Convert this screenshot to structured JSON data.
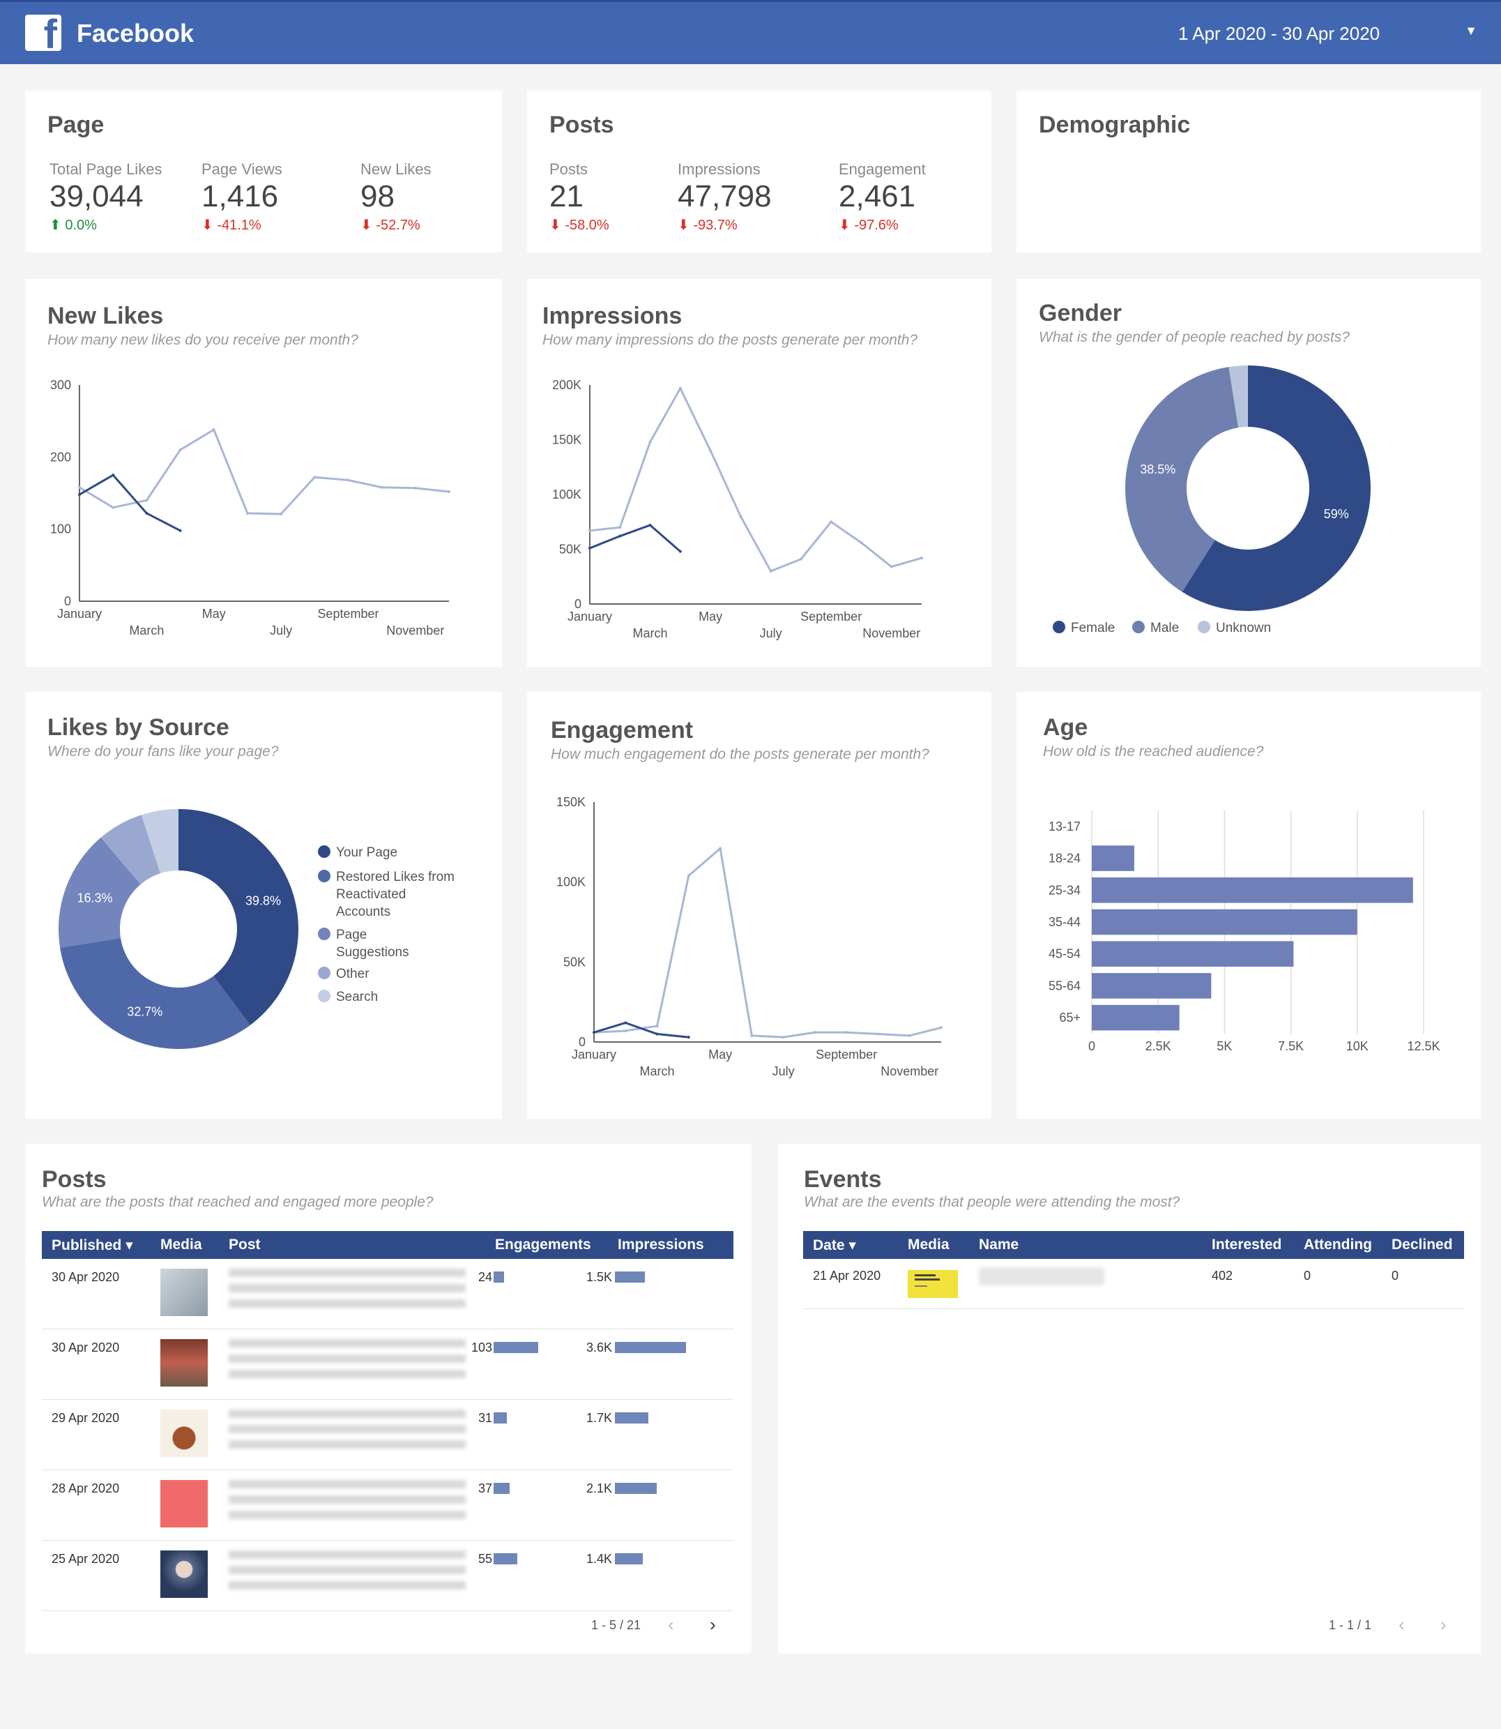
{
  "header": {
    "brand": "Facebook",
    "date_range": "1 Apr 2020 - 30 Apr 2020"
  },
  "page_card": {
    "title": "Page",
    "kpis": [
      {
        "label": "Total Page Likes",
        "value": "39,044",
        "delta": "0.0%",
        "dir": "up"
      },
      {
        "label": "Page Views",
        "value": "1,416",
        "delta": "-41.1%",
        "dir": "down"
      },
      {
        "label": "New Likes",
        "value": "98",
        "delta": "-52.7%",
        "dir": "down"
      }
    ]
  },
  "posts_card": {
    "title": "Posts",
    "kpis": [
      {
        "label": "Posts",
        "value": "21",
        "delta": "-58.0%",
        "dir": "down"
      },
      {
        "label": "Impressions",
        "value": "47,798",
        "delta": "-93.7%",
        "dir": "down"
      },
      {
        "label": "Engagement",
        "value": "2,461",
        "delta": "-97.6%",
        "dir": "down"
      }
    ]
  },
  "demographic_card": {
    "title": "Demographic"
  },
  "new_likes": {
    "title": "New Likes",
    "subtitle": "How many new likes do you receive per month?"
  },
  "impressions": {
    "title": "Impressions",
    "subtitle": "How many impressions do the posts generate per month?"
  },
  "gender": {
    "title": "Gender",
    "subtitle": "What is the gender of people reached by posts?"
  },
  "likes_source": {
    "title": "Likes by Source",
    "subtitle": "Where do your fans like your page?"
  },
  "engagement": {
    "title": "Engagement",
    "subtitle": "How much engagement do the posts generate per month?"
  },
  "age": {
    "title": "Age",
    "subtitle": "How old is the reached audience?"
  },
  "chart_data": [
    {
      "id": "new_likes",
      "type": "line",
      "x": [
        "January",
        "February",
        "March",
        "April",
        "May",
        "June",
        "July",
        "August",
        "September",
        "October",
        "November",
        "December"
      ],
      "xticks_top": [
        "January",
        "May",
        "September"
      ],
      "xticks_bottom": [
        "March",
        "July",
        "November"
      ],
      "ylim": [
        0,
        300
      ],
      "yticks": [
        "0",
        "100",
        "200",
        "300"
      ],
      "series": [
        {
          "values": [
            158,
            130,
            140,
            210,
            238,
            122,
            121,
            172,
            168,
            158,
            157,
            152
          ],
          "color": "#a8b6d6"
        },
        {
          "values": [
            148,
            175,
            122,
            98,
            null,
            null,
            null,
            null,
            null,
            null,
            null,
            null
          ],
          "color": "#2f4a87"
        }
      ]
    },
    {
      "id": "impressions",
      "type": "line",
      "x": [
        "January",
        "February",
        "March",
        "April",
        "May",
        "June",
        "July",
        "August",
        "September",
        "October",
        "November",
        "December"
      ],
      "xticks_top": [
        "January",
        "May",
        "September"
      ],
      "xticks_bottom": [
        "March",
        "July",
        "November"
      ],
      "ylim": [
        0,
        200000
      ],
      "yticks": [
        "0",
        "50K",
        "100K",
        "150K",
        "200K"
      ],
      "series": [
        {
          "values": [
            67000,
            70000,
            148000,
            197000,
            140000,
            80000,
            30000,
            41000,
            75000,
            56000,
            34000,
            42000
          ],
          "color": "#a8b6d6"
        },
        {
          "values": [
            51000,
            62000,
            72000,
            48000,
            null,
            null,
            null,
            null,
            null,
            null,
            null,
            null
          ],
          "color": "#2f4a87"
        }
      ]
    },
    {
      "id": "gender",
      "type": "pie",
      "slices": [
        {
          "label": "Female",
          "value": 59,
          "text": "59%",
          "color": "#2f4a87"
        },
        {
          "label": "Male",
          "value": 38.5,
          "text": "38.5%",
          "color": "#6f7fb0"
        },
        {
          "label": "Unknown",
          "value": 2.5,
          "text": "",
          "color": "#b8c4dd"
        }
      ],
      "legend": "bottom"
    },
    {
      "id": "likes_source",
      "type": "pie",
      "slices": [
        {
          "label": "Your Page",
          "value": 39.8,
          "text": "39.8%",
          "color": "#2f4a87"
        },
        {
          "label": "Restored Likes from Reactivated Accounts",
          "value": 32.7,
          "text": "32.7%",
          "color": "#4f68a8"
        },
        {
          "label": "Page Suggestions",
          "value": 16.3,
          "text": "16.3%",
          "color": "#7285bc"
        },
        {
          "label": "Other",
          "value": 6.2,
          "text": "",
          "color": "#9aa8cf"
        },
        {
          "label": "Search",
          "value": 5.0,
          "text": "",
          "color": "#c3cde4"
        }
      ],
      "legend": "right"
    },
    {
      "id": "engagement",
      "type": "line",
      "x": [
        "January",
        "February",
        "March",
        "April",
        "May",
        "June",
        "July",
        "August",
        "September",
        "October",
        "November",
        "December"
      ],
      "xticks_top": [
        "January",
        "May",
        "September"
      ],
      "xticks_bottom": [
        "March",
        "July",
        "November"
      ],
      "ylim": [
        0,
        150000
      ],
      "yticks": [
        "0",
        "50K",
        "100K",
        "150K"
      ],
      "series": [
        {
          "values": [
            6000,
            7000,
            10000,
            104000,
            121000,
            4000,
            3000,
            6000,
            6000,
            5000,
            4000,
            9000
          ],
          "color": "#a8b6d6"
        },
        {
          "values": [
            6000,
            12000,
            5000,
            3000,
            null,
            null,
            null,
            null,
            null,
            null,
            null,
            null
          ],
          "color": "#2f4a87"
        }
      ]
    },
    {
      "id": "age",
      "type": "bar",
      "categories": [
        "13-17",
        "18-24",
        "25-34",
        "35-44",
        "45-54",
        "55-64",
        "65+"
      ],
      "values": [
        0,
        1600,
        12100,
        10000,
        7600,
        4500,
        3300
      ],
      "xlim": [
        0,
        12500
      ],
      "xticks": [
        "0",
        "2.5K",
        "5K",
        "7.5K",
        "10K",
        "12.5K"
      ],
      "color": "#6f7fb8"
    }
  ],
  "posts_table": {
    "title": "Posts",
    "subtitle": "What are the posts that reached and engaged more people?",
    "columns": [
      "Published ▾",
      "Media",
      "Post",
      "Engagements",
      "Impressions"
    ],
    "rows": [
      {
        "date": "30 Apr 2020",
        "eng": "24",
        "eng_v": 24,
        "imp": "1.5K",
        "imp_v": 1.5
      },
      {
        "date": "30 Apr 2020",
        "eng": "103",
        "eng_v": 103,
        "imp": "3.6K",
        "imp_v": 3.6
      },
      {
        "date": "29 Apr 2020",
        "eng": "31",
        "eng_v": 31,
        "imp": "1.7K",
        "imp_v": 1.7
      },
      {
        "date": "28 Apr 2020",
        "eng": "37",
        "eng_v": 37,
        "imp": "2.1K",
        "imp_v": 2.1
      },
      {
        "date": "25 Apr 2020",
        "eng": "55",
        "eng_v": 55,
        "imp": "1.4K",
        "imp_v": 1.4
      }
    ],
    "pager": "1 - 5 / 21"
  },
  "events_table": {
    "title": "Events",
    "subtitle": "What are the events that people were attending the most?",
    "columns": [
      "Date ▾",
      "Media",
      "Name",
      "Interested",
      "Attending",
      "Declined"
    ],
    "rows": [
      {
        "date": "21 Apr 2020",
        "interested": "402",
        "attending": "0",
        "declined": "0"
      }
    ],
    "pager": "1 - 1 / 1"
  }
}
